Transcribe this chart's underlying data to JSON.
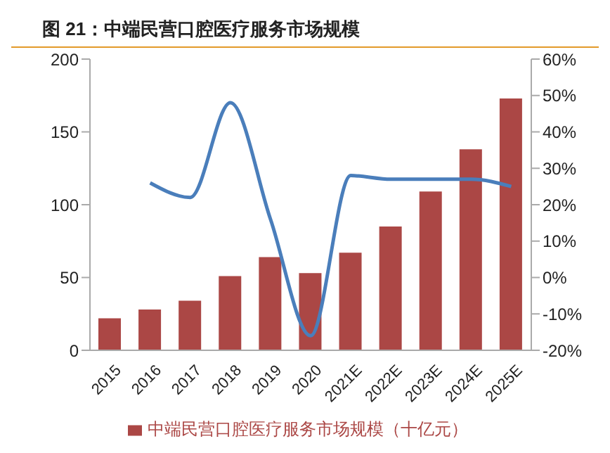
{
  "chart_data": {
    "type": "bar",
    "title": "图 21：中端民营口腔医疗服务市场规模",
    "categories": [
      "2015",
      "2016",
      "2017",
      "2018",
      "2019",
      "2020",
      "2021E",
      "2022E",
      "2023E",
      "2024E",
      "2025E"
    ],
    "series": [
      {
        "name": "中端民营口腔医疗服务市场规模（十亿元）",
        "color": "#ab4745",
        "values": [
          22,
          28,
          34,
          51,
          64,
          53,
          67,
          85,
          109,
          138,
          173
        ]
      },
      {
        "type": "line",
        "axis": "y2",
        "color": "#4a7ebb",
        "values": [
          null,
          26,
          22,
          48,
          16,
          -16,
          28,
          27,
          27,
          27,
          25
        ]
      }
    ],
    "ylim": [
      0,
      200
    ],
    "yticks": [
      0,
      50,
      100,
      150,
      200
    ],
    "y2lim": [
      -20,
      60
    ],
    "y2ticks": [
      {
        "value": -20,
        "label": "-20%"
      },
      {
        "value": -10,
        "label": "-10%"
      },
      {
        "value": 0,
        "label": "0%"
      },
      {
        "value": 10,
        "label": "10%"
      },
      {
        "value": 20,
        "label": "20%"
      },
      {
        "value": 30,
        "label": "30%"
      },
      {
        "value": 40,
        "label": "40%"
      },
      {
        "value": 50,
        "label": "50%"
      },
      {
        "value": 60,
        "label": "60%"
      }
    ],
    "grid": false,
    "legend": "bottom",
    "marker": "none"
  }
}
